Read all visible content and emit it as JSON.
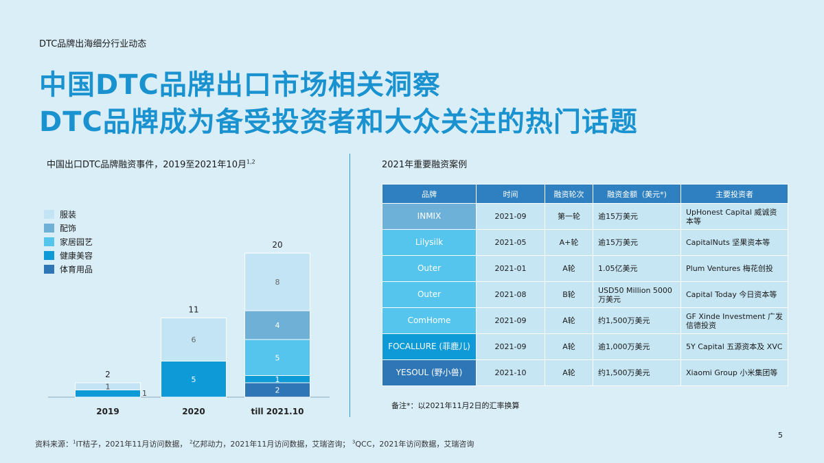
{
  "kicker": "DTC品牌出海细分行业动态",
  "title_line1": "中国DTC品牌出口市场相关洞察",
  "title_line2": "DTC品牌成为备受投资者和大众关注的热门话题",
  "left_title": "中国出口DTC品牌融资事件，2019至2021年10月",
  "left_title_sup": "1,2",
  "right_title": "2021年重要融资案例",
  "chart_data": {
    "type": "bar",
    "stacked": true,
    "categories": [
      "2019",
      "2020",
      "till 2021.10"
    ],
    "totals": [
      2,
      11,
      20
    ],
    "series": [
      {
        "name": "体育用品",
        "color": "#2f76b6",
        "values": [
          0,
          0,
          2
        ]
      },
      {
        "name": "健康美容",
        "color": "#0e9ad6",
        "values": [
          1,
          5,
          1
        ]
      },
      {
        "name": "家居园艺",
        "color": "#55c5ee",
        "values": [
          0,
          0,
          5
        ]
      },
      {
        "name": "配饰",
        "color": "#6fb0d6",
        "values": [
          0,
          0,
          4
        ]
      },
      {
        "name": "服装",
        "color": "#c3e4f4",
        "values": [
          1,
          6,
          8
        ]
      }
    ],
    "legend_order": [
      "服装",
      "配饰",
      "家居园艺",
      "健康美容",
      "体育用品"
    ],
    "legend_colors": [
      "#c3e4f4",
      "#6fb0d6",
      "#55c5ee",
      "#0e9ad6",
      "#2f76b6"
    ],
    "ylim": [
      0,
      20
    ],
    "legend_position": "top-left"
  },
  "table": {
    "headers": [
      "品牌",
      "时间",
      "融资轮次",
      "融资金额（美元*)",
      "主要投资者"
    ],
    "rows": [
      {
        "brand": "INMIX",
        "brand_color": "#6db1d8",
        "date": "2021-09",
        "round": "第一轮",
        "amount": "逾15万美元",
        "investor": "UpHonest Capital 威诚资本等"
      },
      {
        "brand": "Lilysilk",
        "brand_color": "#55c5ee",
        "date": "2021-05",
        "round": "A+轮",
        "amount": "逾15万美元",
        "investor": "CapitalNuts 坚果资本等"
      },
      {
        "brand": "Outer",
        "brand_color": "#55c5ee",
        "date": "2021-01",
        "round": "A轮",
        "amount": "1.05亿美元",
        "investor": "Plum Ventures 梅花创投"
      },
      {
        "brand": "Outer",
        "brand_color": "#55c5ee",
        "date": "2021-08",
        "round": "B轮",
        "amount": "USD50 Million 5000万美元",
        "investor": "Capital Today 今日资本等"
      },
      {
        "brand": "ComHome",
        "brand_color": "#55c5ee",
        "date": "2021-09",
        "round": "A轮",
        "amount": "约1,500万美元",
        "investor": "GF Xinde Investment 广发信德投资"
      },
      {
        "brand": "FOCALLURE (菲鹿儿)",
        "brand_color": "#0e9ad6",
        "date": "2021-09",
        "round": "A轮",
        "amount": "逾1,000万美元",
        "investor": "5Y Capital 五源资本及 XVC"
      },
      {
        "brand": "YESOUL (野小兽)",
        "brand_color": "#2f76b6",
        "date": "2021-10",
        "round": "A轮",
        "amount": "约1,500万美元",
        "investor": "Xiaomi Group 小米集团等"
      }
    ]
  },
  "table_note": "备注*：以2021年11月2日的汇率换算",
  "source_prefix": "资料来源：",
  "source_parts": [
    "IT桔子，2021年11月访问数据，",
    "亿邦动力，2021年11月访问数据，艾瑞咨询；",
    "QCC，2021年访问数据，艾瑞咨询"
  ],
  "source_sups": [
    "1",
    "2",
    "3"
  ],
  "page_number": "5"
}
